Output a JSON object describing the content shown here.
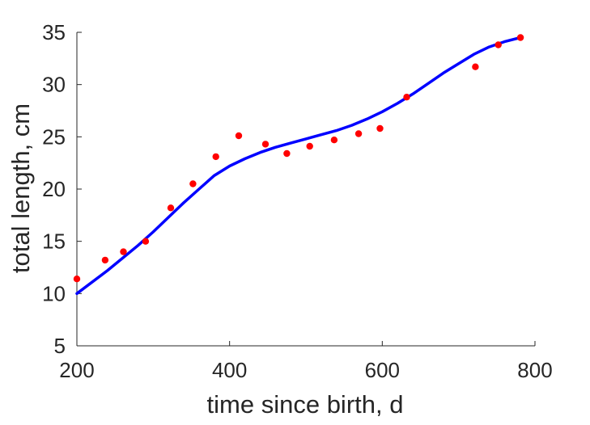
{
  "chart_data": {
    "type": "scatter",
    "xlabel": "time since birth, d",
    "ylabel": "total length, cm",
    "xlim": [
      200,
      800
    ],
    "ylim": [
      5,
      35
    ],
    "xticks": [
      200,
      400,
      600,
      800
    ],
    "yticks": [
      5,
      10,
      15,
      20,
      25,
      30,
      35
    ],
    "grid": false,
    "series": [
      {
        "kind": "points",
        "color": "#ff0000",
        "x": [
          200,
          237,
          261,
          290,
          323,
          352,
          382,
          412,
          447,
          475,
          505,
          537,
          569,
          597,
          632,
          722,
          752,
          781
        ],
        "y": [
          11.4,
          13.2,
          14.0,
          15.0,
          18.2,
          20.5,
          23.1,
          25.1,
          24.3,
          23.4,
          24.1,
          24.7,
          25.3,
          25.8,
          28.8,
          31.7,
          33.8,
          34.5
        ]
      },
      {
        "kind": "line",
        "color": "#0000ff",
        "x": [
          200,
          240,
          280,
          300,
          320,
          340,
          360,
          380,
          400,
          420,
          440,
          460,
          480,
          500,
          520,
          540,
          560,
          580,
          600,
          620,
          640,
          660,
          680,
          700,
          720,
          740,
          760,
          781
        ],
        "y": [
          10.0,
          12.2,
          14.6,
          15.9,
          17.3,
          18.7,
          20.0,
          21.3,
          22.2,
          22.9,
          23.5,
          24.0,
          24.4,
          24.8,
          25.2,
          25.6,
          26.1,
          26.7,
          27.4,
          28.2,
          29.1,
          30.1,
          31.1,
          32.0,
          32.9,
          33.6,
          34.1,
          34.5
        ]
      }
    ]
  }
}
